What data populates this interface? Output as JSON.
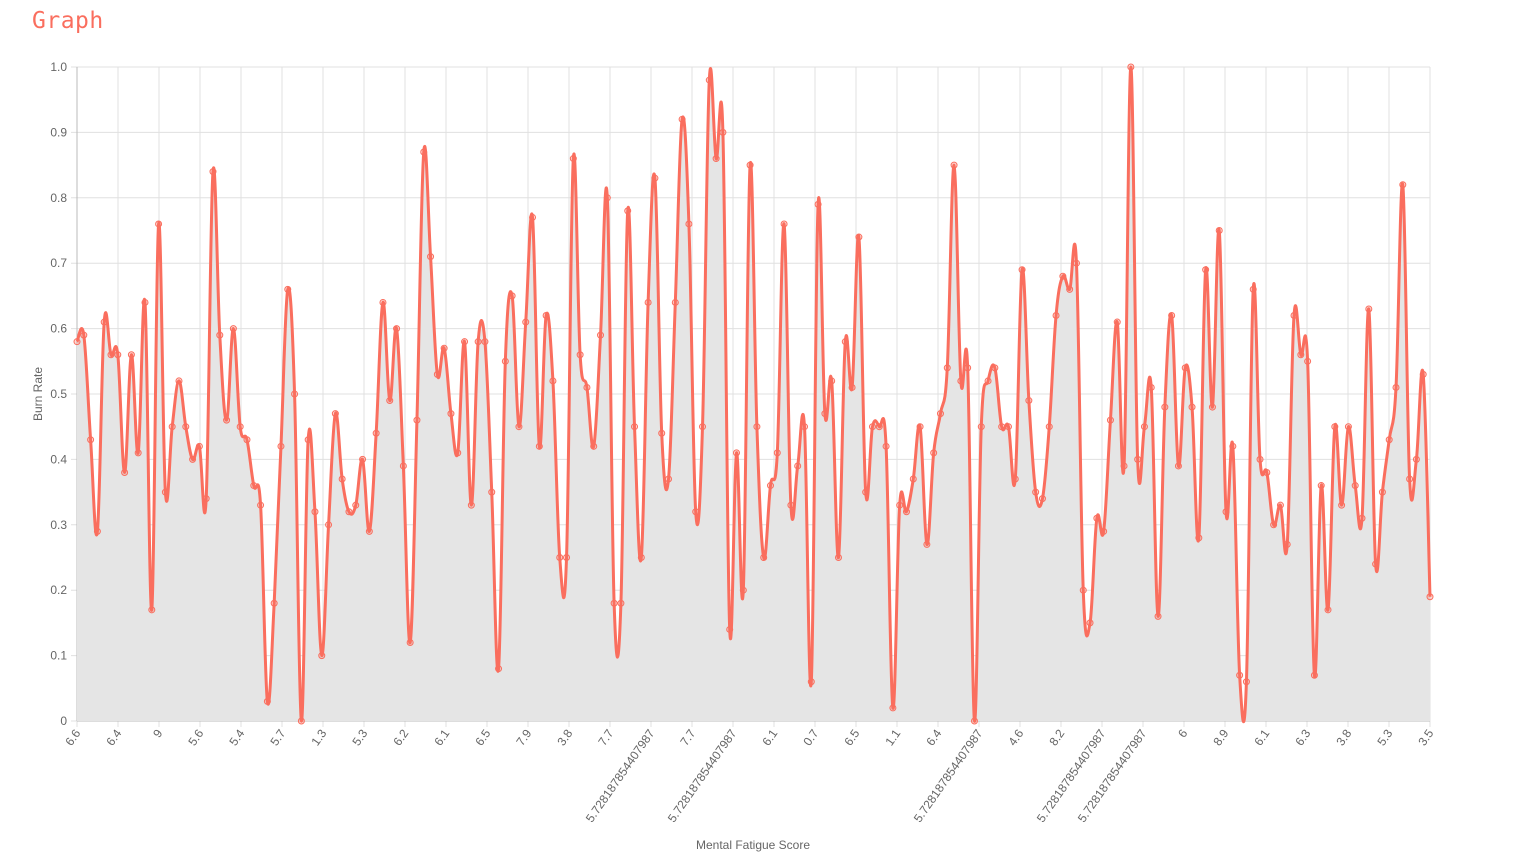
{
  "page": {
    "title": "Graph"
  },
  "chart_data": {
    "type": "area",
    "xlabel": "Mental Fatigue Score",
    "ylabel": "Burn Rate",
    "ylim": [
      0,
      1
    ],
    "yticks": [
      "0",
      "0.1",
      "0.2",
      "0.3",
      "0.4",
      "0.5",
      "0.6",
      "0.7",
      "0.8",
      "0.9",
      "1.0"
    ],
    "grid": true,
    "colors": {
      "line": "#fa6e5e",
      "fill": "#e5e5e5",
      "grid": "#e0e0e0",
      "axis": "#bbbbbb"
    },
    "x_tick_labels": [
      "6.6",
      "6.4",
      "9",
      "5.6",
      "5.4",
      "5.7",
      "1.3",
      "5.3",
      "6.2",
      "6.1",
      "6.5",
      "7.9",
      "3.8",
      "7.7",
      "5.728187854407987",
      "7.7",
      "5.728187854407987",
      "6.1",
      "0.7",
      "6.5",
      "1.1",
      "6.4",
      "5.728187854407987",
      "4.6",
      "8.2",
      "5.728187854407987",
      "5.728187854407987",
      "6",
      "8.9",
      "6.1",
      "6.3",
      "3.8",
      "5.3",
      "3.5"
    ],
    "series": [
      {
        "values": [
          0.58,
          0.59,
          0.43,
          0.29,
          0.61,
          0.56,
          0.56,
          0.38,
          0.56,
          0.41,
          0.64,
          0.17,
          0.76,
          0.35,
          0.45,
          0.52,
          0.45,
          0.4,
          0.42,
          0.34,
          0.84,
          0.59,
          0.46,
          0.6,
          0.45,
          0.43,
          0.36,
          0.33,
          0.03,
          0.18,
          0.42,
          0.66,
          0.5,
          0.0,
          0.43,
          0.32,
          0.1,
          0.3,
          0.47,
          0.37,
          0.32,
          0.33,
          0.4,
          0.29,
          0.44,
          0.64,
          0.49,
          0.6,
          0.39,
          0.12,
          0.46,
          0.87,
          0.71,
          0.53,
          0.57,
          0.47,
          0.41,
          0.58,
          0.33,
          0.58,
          0.58,
          0.35,
          0.08,
          0.55,
          0.65,
          0.45,
          0.61,
          0.77,
          0.42,
          0.62,
          0.52,
          0.25,
          0.25,
          0.86,
          0.56,
          0.51,
          0.42,
          0.59,
          0.8,
          0.18,
          0.18,
          0.78,
          0.45,
          0.25,
          0.64,
          0.83,
          0.44,
          0.37,
          0.64,
          0.92,
          0.76,
          0.32,
          0.45,
          0.98,
          0.86,
          0.9,
          0.14,
          0.41,
          0.2,
          0.85,
          0.45,
          0.25,
          0.36,
          0.41,
          0.76,
          0.33,
          0.39,
          0.45,
          0.06,
          0.79,
          0.47,
          0.52,
          0.25,
          0.58,
          0.51,
          0.74,
          0.35,
          0.45,
          0.45,
          0.42,
          0.02,
          0.33,
          0.32,
          0.37,
          0.45,
          0.27,
          0.41,
          0.47,
          0.54,
          0.85,
          0.52,
          0.54,
          0.0,
          0.45,
          0.52,
          0.54,
          0.45,
          0.45,
          0.37,
          0.69,
          0.49,
          0.35,
          0.34,
          0.45,
          0.62,
          0.68,
          0.66,
          0.7,
          0.2,
          0.15,
          0.31,
          0.29,
          0.46,
          0.61,
          0.39,
          1.0,
          0.4,
          0.45,
          0.51,
          0.16,
          0.48,
          0.62,
          0.39,
          0.54,
          0.48,
          0.28,
          0.69,
          0.48,
          0.75,
          0.32,
          0.42,
          0.07,
          0.06,
          0.66,
          0.4,
          0.38,
          0.3,
          0.33,
          0.27,
          0.62,
          0.56,
          0.55,
          0.07,
          0.36,
          0.17,
          0.45,
          0.33,
          0.45,
          0.36,
          0.31,
          0.63,
          0.24,
          0.35,
          0.43,
          0.51,
          0.82,
          0.37,
          0.4,
          0.53,
          0.19
        ]
      }
    ]
  }
}
